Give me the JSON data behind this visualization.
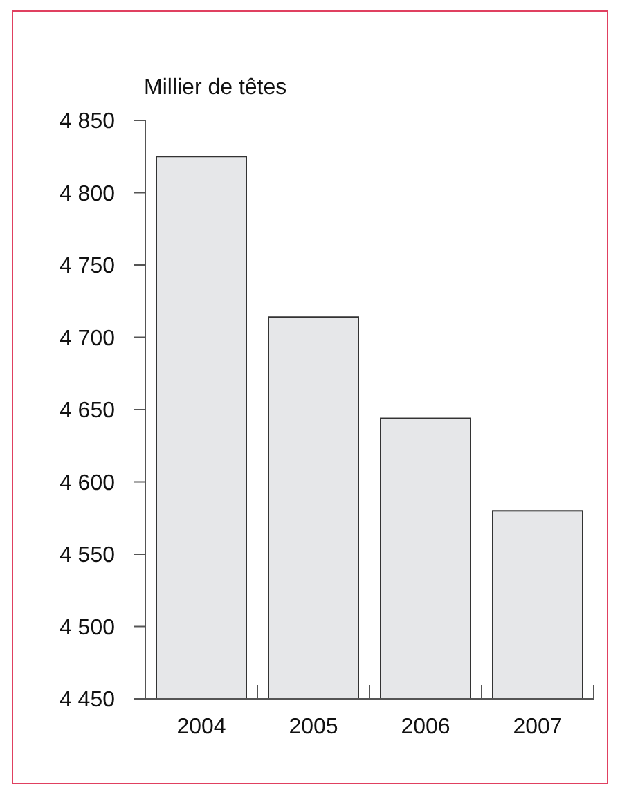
{
  "chart_data": {
    "type": "bar",
    "ylabel": "Millier de têtes",
    "categories": [
      "2004",
      "2005",
      "2006",
      "2007"
    ],
    "values": [
      4825,
      4714,
      4644,
      4580
    ],
    "color": "#e6e7e9",
    "ylim": [
      4450,
      4850
    ],
    "yticks": [
      {
        "value": 4450,
        "label": "4 450"
      },
      {
        "value": 4500,
        "label": "4 500"
      },
      {
        "value": 4550,
        "label": "4 550"
      },
      {
        "value": 4600,
        "label": "4 600"
      },
      {
        "value": 4650,
        "label": "4 650"
      },
      {
        "value": 4700,
        "label": "4 700"
      },
      {
        "value": 4750,
        "label": "4 750"
      },
      {
        "value": 4800,
        "label": "4 800"
      },
      {
        "value": 4850,
        "label": "4 850"
      }
    ],
    "grid": false
  }
}
